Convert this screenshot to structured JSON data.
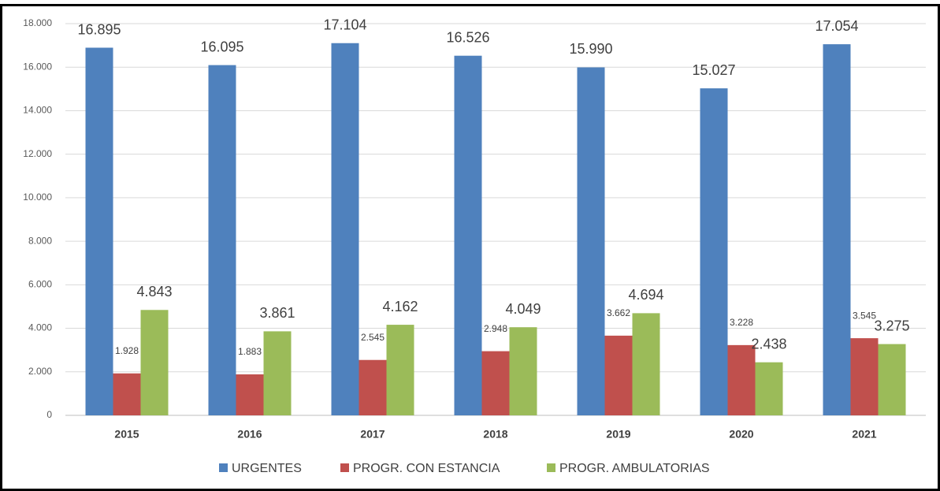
{
  "chart_data": {
    "type": "bar",
    "categories": [
      "2015",
      "2016",
      "2017",
      "2018",
      "2019",
      "2020",
      "2021"
    ],
    "series": [
      {
        "name": "URGENTES",
        "color": "#4f81bd",
        "values": [
          16895,
          16095,
          17104,
          16526,
          15990,
          15027,
          17054
        ],
        "value_labels": [
          "16.895",
          "16.095",
          "17.104",
          "16.526",
          "15.990",
          "15.027",
          "17.054"
        ]
      },
      {
        "name": "PROGR. CON ESTANCIA",
        "color": "#c0504d",
        "values": [
          1928,
          1883,
          2545,
          2948,
          3662,
          3228,
          3545
        ],
        "value_labels": [
          "1.928",
          "1.883",
          "2.545",
          "2.948",
          "3.662",
          "3.228",
          "3.545"
        ]
      },
      {
        "name": "PROGR. AMBULATORIAS",
        "color": "#9bbb59",
        "values": [
          4843,
          3861,
          4162,
          4049,
          4694,
          2438,
          3275
        ],
        "value_labels": [
          "4.843",
          "3.861",
          "4.162",
          "4.049",
          "4.694",
          "2.438",
          "3.275"
        ]
      }
    ],
    "ylim": [
      0,
      18000
    ],
    "yticks": [
      0,
      {
        "value": 2000,
        "label": "2.000"
      },
      {
        "value": 4000,
        "label": "4.000"
      },
      {
        "value": 6000,
        "label": "6.000"
      },
      {
        "value": 8000,
        "label": "8.000"
      },
      {
        "value": 10000,
        "label": "10.000"
      },
      {
        "value": 12000,
        "label": "12.000"
      },
      {
        "value": 14000,
        "label": "14.000"
      },
      {
        "value": 16000,
        "label": "16.000"
      },
      {
        "value": 18000,
        "label": "18.000"
      }
    ],
    "grid": true,
    "legend": "bottom"
  }
}
